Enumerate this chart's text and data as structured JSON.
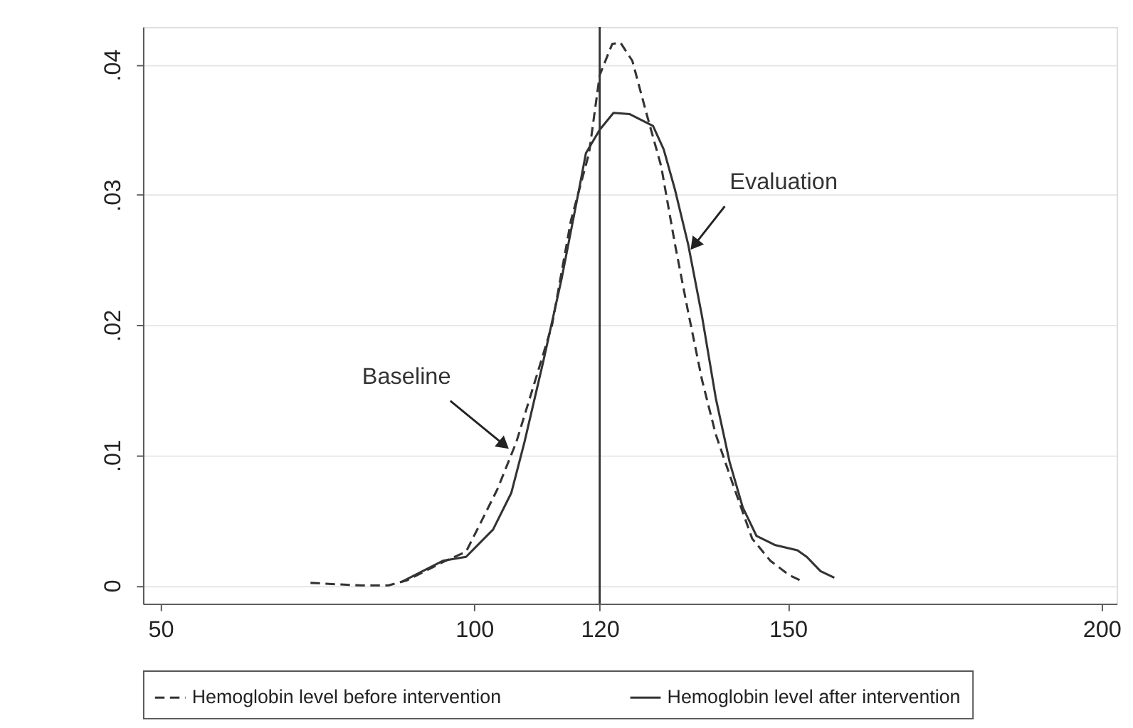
{
  "chart_data": {
    "type": "line",
    "xlim": [
      47.2,
      202.4
    ],
    "xticks": [
      50,
      100,
      120,
      150,
      200
    ],
    "ylim": [
      -0.0014,
      0.0429
    ],
    "yticks": [
      0,
      {
        "value": 0.01,
        "label": ".01"
      },
      {
        "value": 0.02,
        "label": ".02"
      },
      {
        "value": 0.03,
        "label": ".03"
      },
      {
        "value": 0.04,
        "label": ".04"
      }
    ],
    "grid": "y",
    "legend": "bottom",
    "series": [
      {
        "name": "Hemoglobin level before intervention",
        "color": "#333333",
        "line_style": "dashed",
        "x": [
          73.9,
          82,
          86.3,
          89.3,
          95,
          98.7,
          100.9,
          103.7,
          106.7,
          110.2,
          112.4,
          115.4,
          118.3,
          120,
          122,
          123.3,
          125.2,
          127.6,
          129.8,
          132,
          134.1,
          136.3,
          138.5,
          141.5,
          144.3,
          147.2,
          150.2,
          152.4
        ],
        "values": [
          0.0002,
          0,
          0,
          0.0004,
          0.0018,
          0.0026,
          0.0047,
          0.0074,
          0.011,
          0.0165,
          0.02,
          0.028,
          0.0332,
          0.0392,
          0.0416,
          0.0417,
          0.0403,
          0.036,
          0.0322,
          0.0262,
          0.021,
          0.0158,
          0.0116,
          0.0074,
          0.0036,
          0.0019,
          0.0008,
          0.0003
        ]
      },
      {
        "name": "Hemoglobin level after intervention",
        "color": "#333333",
        "line_style": "solid",
        "x": [
          88.5,
          95,
          98.7,
          103,
          105.9,
          108,
          111,
          113.9,
          116.7,
          117.8,
          120,
          122.2,
          124.8,
          128.5,
          130.2,
          132,
          134.1,
          136.3,
          138.5,
          140.7,
          142.8,
          145,
          148,
          151.5,
          153,
          155.2,
          157.4
        ],
        "values": [
          0.0003,
          0.0019,
          0.0022,
          0.0043,
          0.0071,
          0.011,
          0.0172,
          0.0235,
          0.0304,
          0.0332,
          0.035,
          0.0363,
          0.0362,
          0.0353,
          0.0335,
          0.0304,
          0.0262,
          0.0207,
          0.0144,
          0.0095,
          0.006,
          0.0038,
          0.0031,
          0.0027,
          0.0022,
          0.0011,
          0.0006
        ]
      }
    ],
    "ref_lines": [
      {
        "axis": "x",
        "value": 120,
        "color": "#333333"
      }
    ],
    "annotations": [
      {
        "text": "Baseline",
        "x": 105.5,
        "y": 0.0105
      },
      {
        "text": "Evaluation",
        "x": 134.5,
        "y": 0.0258
      }
    ]
  }
}
